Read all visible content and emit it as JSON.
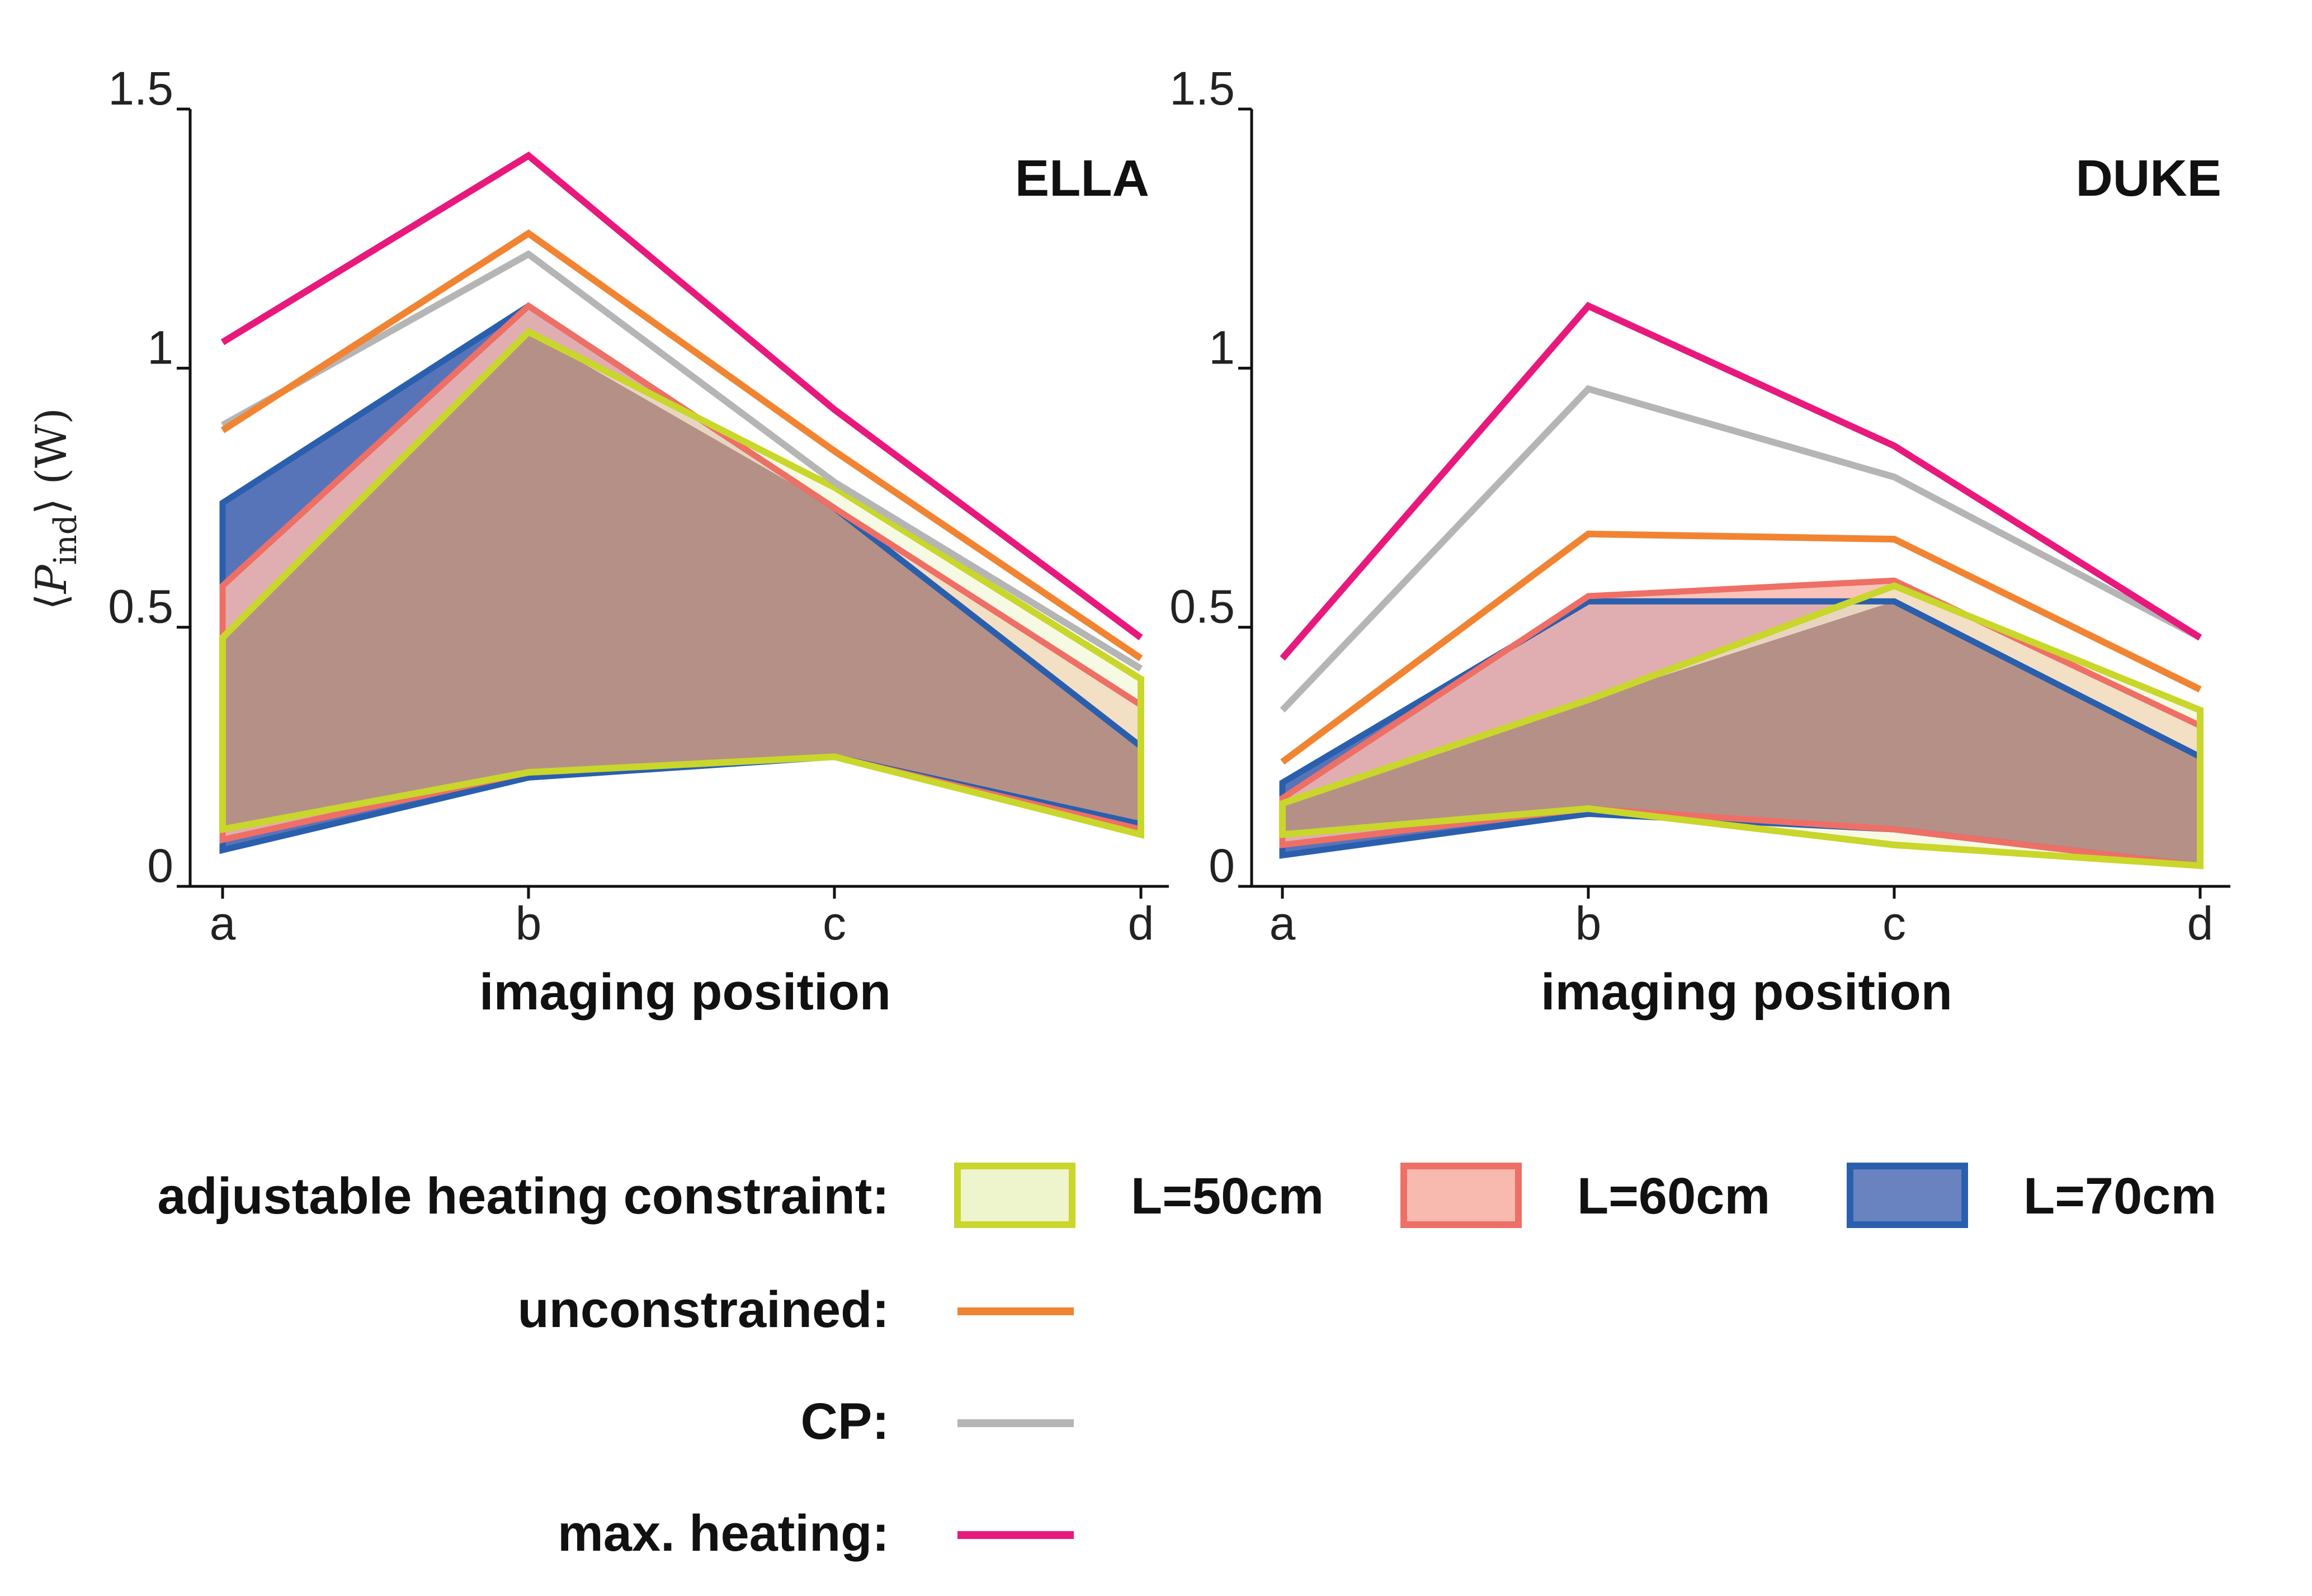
{
  "chart_data": [
    {
      "type": "area",
      "title": "ELLA",
      "xlabel": "imaging position",
      "ylabel": "⟨P_ind⟩ (W)",
      "categories": [
        "a",
        "b",
        "c",
        "d"
      ],
      "ylim": [
        0,
        1.5
      ],
      "yticks": [
        {
          "value": 0,
          "label": "0"
        },
        {
          "value": 0.5,
          "label": "0.5"
        },
        {
          "value": 1,
          "label": "1"
        },
        {
          "value": 1.5,
          "label": "1.5"
        }
      ],
      "bands": [
        {
          "name": "L=70cm",
          "lower": [
            0.07,
            0.21,
            0.25,
            0.12
          ],
          "upper": [
            0.74,
            1.12,
            0.73,
            0.27
          ]
        },
        {
          "name": "L=60cm",
          "lower": [
            0.09,
            0.22,
            0.25,
            0.11
          ],
          "upper": [
            0.58,
            1.12,
            0.73,
            0.35
          ]
        },
        {
          "name": "L=50cm",
          "lower": [
            0.11,
            0.22,
            0.25,
            0.1
          ],
          "upper": [
            0.48,
            1.07,
            0.77,
            0.4
          ]
        }
      ],
      "series": [
        {
          "name": "CP",
          "values": [
            0.89,
            1.22,
            0.78,
            0.42
          ]
        },
        {
          "name": "unconstrained",
          "values": [
            0.88,
            1.26,
            0.84,
            0.44
          ]
        },
        {
          "name": "max. heating",
          "values": [
            1.05,
            1.41,
            0.92,
            0.48
          ]
        }
      ]
    },
    {
      "type": "area",
      "title": "DUKE",
      "xlabel": "imaging position",
      "ylabel": "⟨P_ind⟩ (W)",
      "categories": [
        "a",
        "b",
        "c",
        "d"
      ],
      "ylim": [
        0,
        1.5
      ],
      "yticks": [
        {
          "value": 0,
          "label": "0"
        },
        {
          "value": 0.5,
          "label": "0.5"
        },
        {
          "value": 1,
          "label": "1"
        },
        {
          "value": 1.5,
          "label": "1.5"
        }
      ],
      "bands": [
        {
          "name": "L=70cm",
          "lower": [
            0.06,
            0.14,
            0.11,
            0.04
          ],
          "upper": [
            0.2,
            0.55,
            0.55,
            0.25
          ]
        },
        {
          "name": "L=60cm",
          "lower": [
            0.08,
            0.15,
            0.11,
            0.04
          ],
          "upper": [
            0.17,
            0.56,
            0.59,
            0.31
          ]
        },
        {
          "name": "L=50cm",
          "lower": [
            0.1,
            0.15,
            0.08,
            0.04
          ],
          "upper": [
            0.16,
            0.36,
            0.58,
            0.34
          ]
        }
      ],
      "series": [
        {
          "name": "CP",
          "values": [
            0.34,
            0.96,
            0.79,
            0.48
          ]
        },
        {
          "name": "unconstrained",
          "values": [
            0.24,
            0.68,
            0.67,
            0.38
          ]
        },
        {
          "name": "max. heating",
          "values": [
            0.44,
            1.12,
            0.85,
            0.48
          ]
        }
      ]
    }
  ],
  "styles": {
    "L=50cm": {
      "fill": "#eef5cc",
      "stroke": "#c9d62b"
    },
    "L=60cm": {
      "fill": "#f8b9ae",
      "stroke": "#ee6f66"
    },
    "L=70cm": {
      "fill": "#4f6db5",
      "stroke": "#2a5fae"
    },
    "CP": {
      "stroke": "#b5b5b5"
    },
    "unconstrained": {
      "stroke": "#f18432"
    },
    "max. heating": {
      "stroke": "#e8197d"
    },
    "overlap_fill": "#b08a82"
  },
  "legend": {
    "band_heading": "adjustable heating constraint:",
    "band_items": [
      "L=50cm",
      "L=60cm",
      "L=70cm"
    ],
    "line_items": [
      {
        "series": "unconstrained",
        "label": "unconstrained:"
      },
      {
        "series": "CP",
        "label": "CP:"
      },
      {
        "series": "max. heating",
        "label": "max. heating:"
      }
    ]
  }
}
